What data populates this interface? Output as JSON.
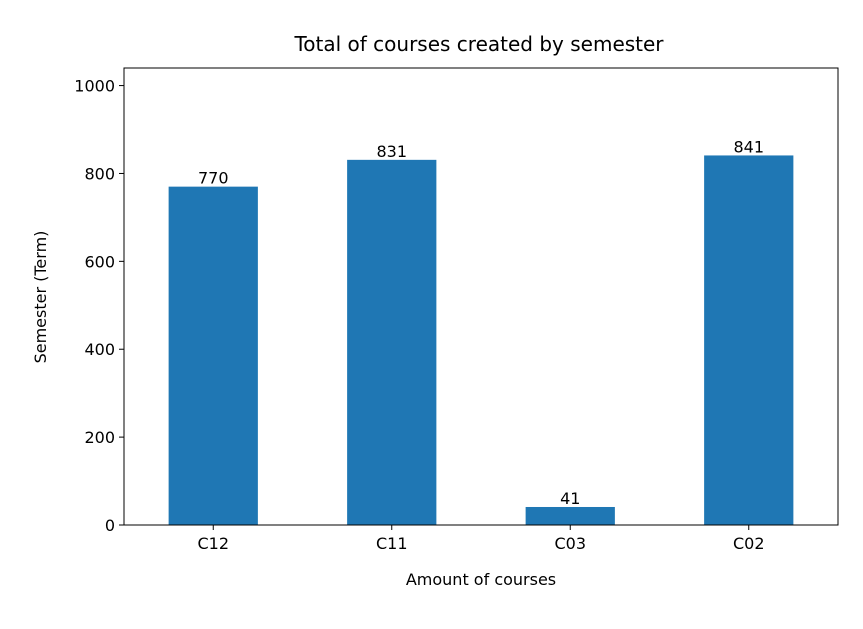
{
  "chart_data": {
    "type": "bar",
    "title": "Total of courses created by semester",
    "xlabel": "Amount of courses",
    "ylabel": "Semester (Term)",
    "categories": [
      "C12",
      "C11",
      "C03",
      "C02"
    ],
    "values": [
      770,
      831,
      41,
      841
    ],
    "data_labels": [
      "770",
      "831",
      "41",
      "841"
    ],
    "ylim": [
      0,
      1040
    ],
    "yticks": [
      0,
      200,
      400,
      600,
      800,
      1000
    ],
    "grid": false,
    "legend": "none",
    "colors": {
      "bar": "#1f77b4",
      "axis": "#000000"
    }
  }
}
